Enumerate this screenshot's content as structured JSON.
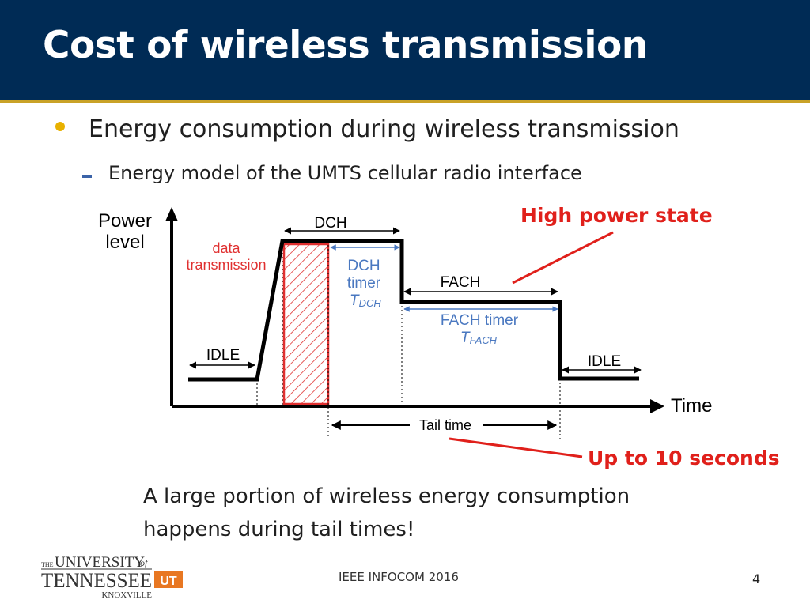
{
  "slide": {
    "title": "Cost of wireless transmission",
    "bullet": "Energy consumption during wireless transmission",
    "sub_bullet": "Energy model of the UMTS cellular radio interface",
    "caption_line1": "A large portion of wireless energy consumption",
    "caption_line2": "happens during tail times!",
    "callout_high": "High power state",
    "callout_up": "Up to 10 seconds",
    "footer": "IEEE INFOCOM 2016",
    "page_number": "4"
  },
  "diagram": {
    "y_axis_label_line1": "Power",
    "y_axis_label_line2": "level",
    "x_axis_label": "Time",
    "idle_left": "IDLE",
    "idle_right": "IDLE",
    "dch": "DCH",
    "fach": "FACH",
    "data_transmission_line1": "data",
    "data_transmission_line2": "transmission",
    "dch_timer_line1": "DCH",
    "dch_timer_line2": "timer",
    "dch_timer_symbol": "T",
    "dch_timer_subscript": "DCH",
    "fach_timer_line1": "FACH timer",
    "fach_timer_symbol": "T",
    "fach_timer_subscript": "FACH",
    "tail_time": "Tail time"
  },
  "logo": {
    "line_the": "THE",
    "line_university": "UNIVERSITY",
    "line_of": "of",
    "line_tennessee": "TENNESSEE",
    "line_ut": "UT",
    "line_knoxville": "KNOXVILLE"
  },
  "colors": {
    "header_bg": "#002b55",
    "header_rule": "#c9a227",
    "bullet": "#e8b100",
    "dash": "#3b63a8",
    "callout": "#e0201b",
    "data_transmission": "#e03030",
    "timer_text": "#4a78c0",
    "logo_orange": "#e87722"
  }
}
